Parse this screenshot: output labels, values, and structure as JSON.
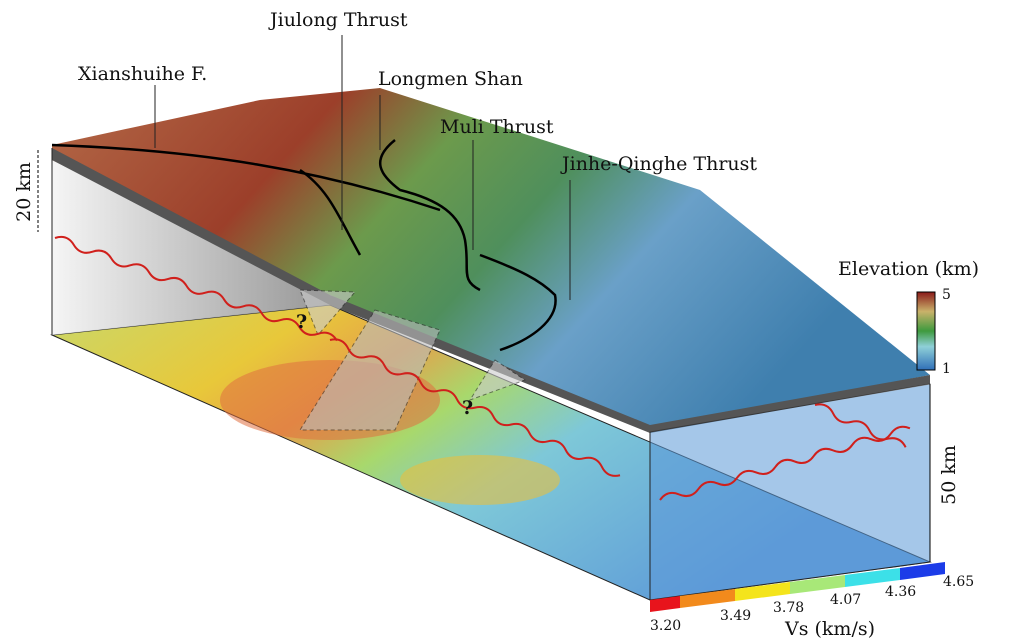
{
  "labels": {
    "jiulong": "Jiulong Thrust",
    "xianshuihe": "Xianshuihe F.",
    "longmen": "Longmen Shan",
    "muli": "Muli Thrust",
    "jinhe": "Jinhe-Qinghe Thrust"
  },
  "scale_bars": {
    "vertical_top": "20 km",
    "vertical_right": "50 km"
  },
  "question_marks": [
    "?",
    "?"
  ],
  "elevation_legend": {
    "title": "Elevation (km)",
    "max": "5",
    "min": "1"
  },
  "vs_legend": {
    "title": "Vs (km/s)",
    "ticks": [
      "3.20",
      "3.49",
      "3.78",
      "4.07",
      "4.36",
      "4.65"
    ]
  }
}
